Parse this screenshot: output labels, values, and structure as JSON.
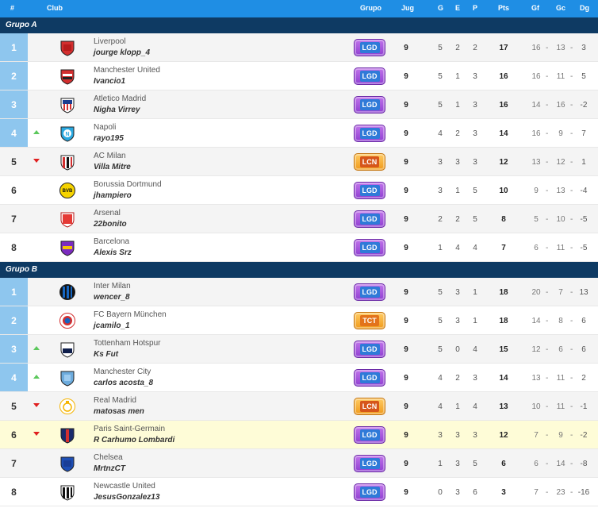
{
  "header": {
    "pos": "#",
    "club": "Club",
    "grupo": "Grupo",
    "jug": "Jug",
    "g": "G",
    "e": "E",
    "p": "P",
    "pts": "Pts",
    "gf": "Gf",
    "gc": "Gc",
    "dg": "Dg"
  },
  "colors": {
    "header": "#1f8ee4",
    "group_bar": "#0e3a63",
    "top_position": "#8ec6ee",
    "up": "#5cc85c",
    "down": "#e02020",
    "highlight": "#fefcd7"
  },
  "groups": [
    {
      "name": "Grupo A",
      "rows": [
        {
          "pos": "1",
          "trend": "",
          "club": "Liverpool",
          "player": "jourge klopp_4",
          "crest": "liverpool",
          "badge": "LGD",
          "jug": "9",
          "g": "5",
          "e": "2",
          "p": "2",
          "pts": "17",
          "gf": "16",
          "gc": "13",
          "dg": "3"
        },
        {
          "pos": "2",
          "trend": "",
          "club": "Manchester United",
          "player": "Ivancio1",
          "crest": "manutd",
          "badge": "LGD",
          "jug": "9",
          "g": "5",
          "e": "1",
          "p": "3",
          "pts": "16",
          "gf": "16",
          "gc": "11",
          "dg": "5"
        },
        {
          "pos": "3",
          "trend": "",
          "club": "Atletico Madrid",
          "player": "Nigha Virrey",
          "crest": "atletico",
          "badge": "LGD",
          "jug": "9",
          "g": "5",
          "e": "1",
          "p": "3",
          "pts": "16",
          "gf": "14",
          "gc": "16",
          "dg": "-2"
        },
        {
          "pos": "4",
          "trend": "up",
          "club": "Napoli",
          "player": "rayo195",
          "crest": "napoli",
          "badge": "LGD",
          "jug": "9",
          "g": "4",
          "e": "2",
          "p": "3",
          "pts": "14",
          "gf": "16",
          "gc": "9",
          "dg": "7"
        },
        {
          "pos": "5",
          "trend": "down",
          "club": "AC Milan",
          "player": "Villa Mitre",
          "crest": "milan",
          "badge": "LCN",
          "jug": "9",
          "g": "3",
          "e": "3",
          "p": "3",
          "pts": "12",
          "gf": "13",
          "gc": "12",
          "dg": "1"
        },
        {
          "pos": "6",
          "trend": "",
          "club": "Borussia Dortmund",
          "player": "jhampiero",
          "crest": "dortmund",
          "badge": "LGD",
          "jug": "9",
          "g": "3",
          "e": "1",
          "p": "5",
          "pts": "10",
          "gf": "9",
          "gc": "13",
          "dg": "-4"
        },
        {
          "pos": "7",
          "trend": "",
          "club": "Arsenal",
          "player": "22bonito",
          "crest": "arsenal",
          "badge": "LGD",
          "jug": "9",
          "g": "2",
          "e": "2",
          "p": "5",
          "pts": "8",
          "gf": "5",
          "gc": "10",
          "dg": "-5"
        },
        {
          "pos": "8",
          "trend": "",
          "club": "Barcelona",
          "player": "Alexis Srz",
          "crest": "barcelona",
          "badge": "LGD",
          "jug": "9",
          "g": "1",
          "e": "4",
          "p": "4",
          "pts": "7",
          "gf": "6",
          "gc": "11",
          "dg": "-5"
        }
      ]
    },
    {
      "name": "Grupo B",
      "rows": [
        {
          "pos": "1",
          "trend": "",
          "club": "Inter Milan",
          "player": "wencer_8",
          "crest": "inter",
          "badge": "LGD",
          "jug": "9",
          "g": "5",
          "e": "3",
          "p": "1",
          "pts": "18",
          "gf": "20",
          "gc": "7",
          "dg": "13"
        },
        {
          "pos": "2",
          "trend": "",
          "club": "FC Bayern München",
          "player": "jcamilo_1",
          "crest": "bayern",
          "badge": "TCT",
          "jug": "9",
          "g": "5",
          "e": "3",
          "p": "1",
          "pts": "18",
          "gf": "14",
          "gc": "8",
          "dg": "6"
        },
        {
          "pos": "3",
          "trend": "up",
          "club": "Tottenham Hotspur",
          "player": "Ks Fut",
          "crest": "tottenham",
          "badge": "LGD",
          "jug": "9",
          "g": "5",
          "e": "0",
          "p": "4",
          "pts": "15",
          "gf": "12",
          "gc": "6",
          "dg": "6"
        },
        {
          "pos": "4",
          "trend": "up",
          "club": "Manchester City",
          "player": "carlos acosta_8",
          "crest": "city",
          "badge": "LGD",
          "jug": "9",
          "g": "4",
          "e": "2",
          "p": "3",
          "pts": "14",
          "gf": "13",
          "gc": "11",
          "dg": "2"
        },
        {
          "pos": "5",
          "trend": "down",
          "club": "Real Madrid",
          "player": "matosas men",
          "crest": "realmadrid",
          "badge": "LCN",
          "jug": "9",
          "g": "4",
          "e": "1",
          "p": "4",
          "pts": "13",
          "gf": "10",
          "gc": "11",
          "dg": "-1"
        },
        {
          "pos": "6",
          "trend": "down",
          "club": "Paris Saint-Germain",
          "player": "R Carhumo Lombardi",
          "crest": "psg",
          "badge": "LGD",
          "jug": "9",
          "g": "3",
          "e": "3",
          "p": "3",
          "pts": "12",
          "gf": "7",
          "gc": "9",
          "dg": "-2",
          "highlight": true
        },
        {
          "pos": "7",
          "trend": "",
          "club": "Chelsea",
          "player": "MrtnzCT",
          "crest": "chelsea",
          "badge": "LGD",
          "jug": "9",
          "g": "1",
          "e": "3",
          "p": "5",
          "pts": "6",
          "gf": "6",
          "gc": "14",
          "dg": "-8"
        },
        {
          "pos": "8",
          "trend": "",
          "club": "Newcastle United",
          "player": "JesusGonzalez13",
          "crest": "newcastle",
          "badge": "LGD",
          "jug": "9",
          "g": "0",
          "e": "3",
          "p": "6",
          "pts": "3",
          "gf": "7",
          "gc": "23",
          "dg": "-16"
        }
      ]
    }
  ]
}
